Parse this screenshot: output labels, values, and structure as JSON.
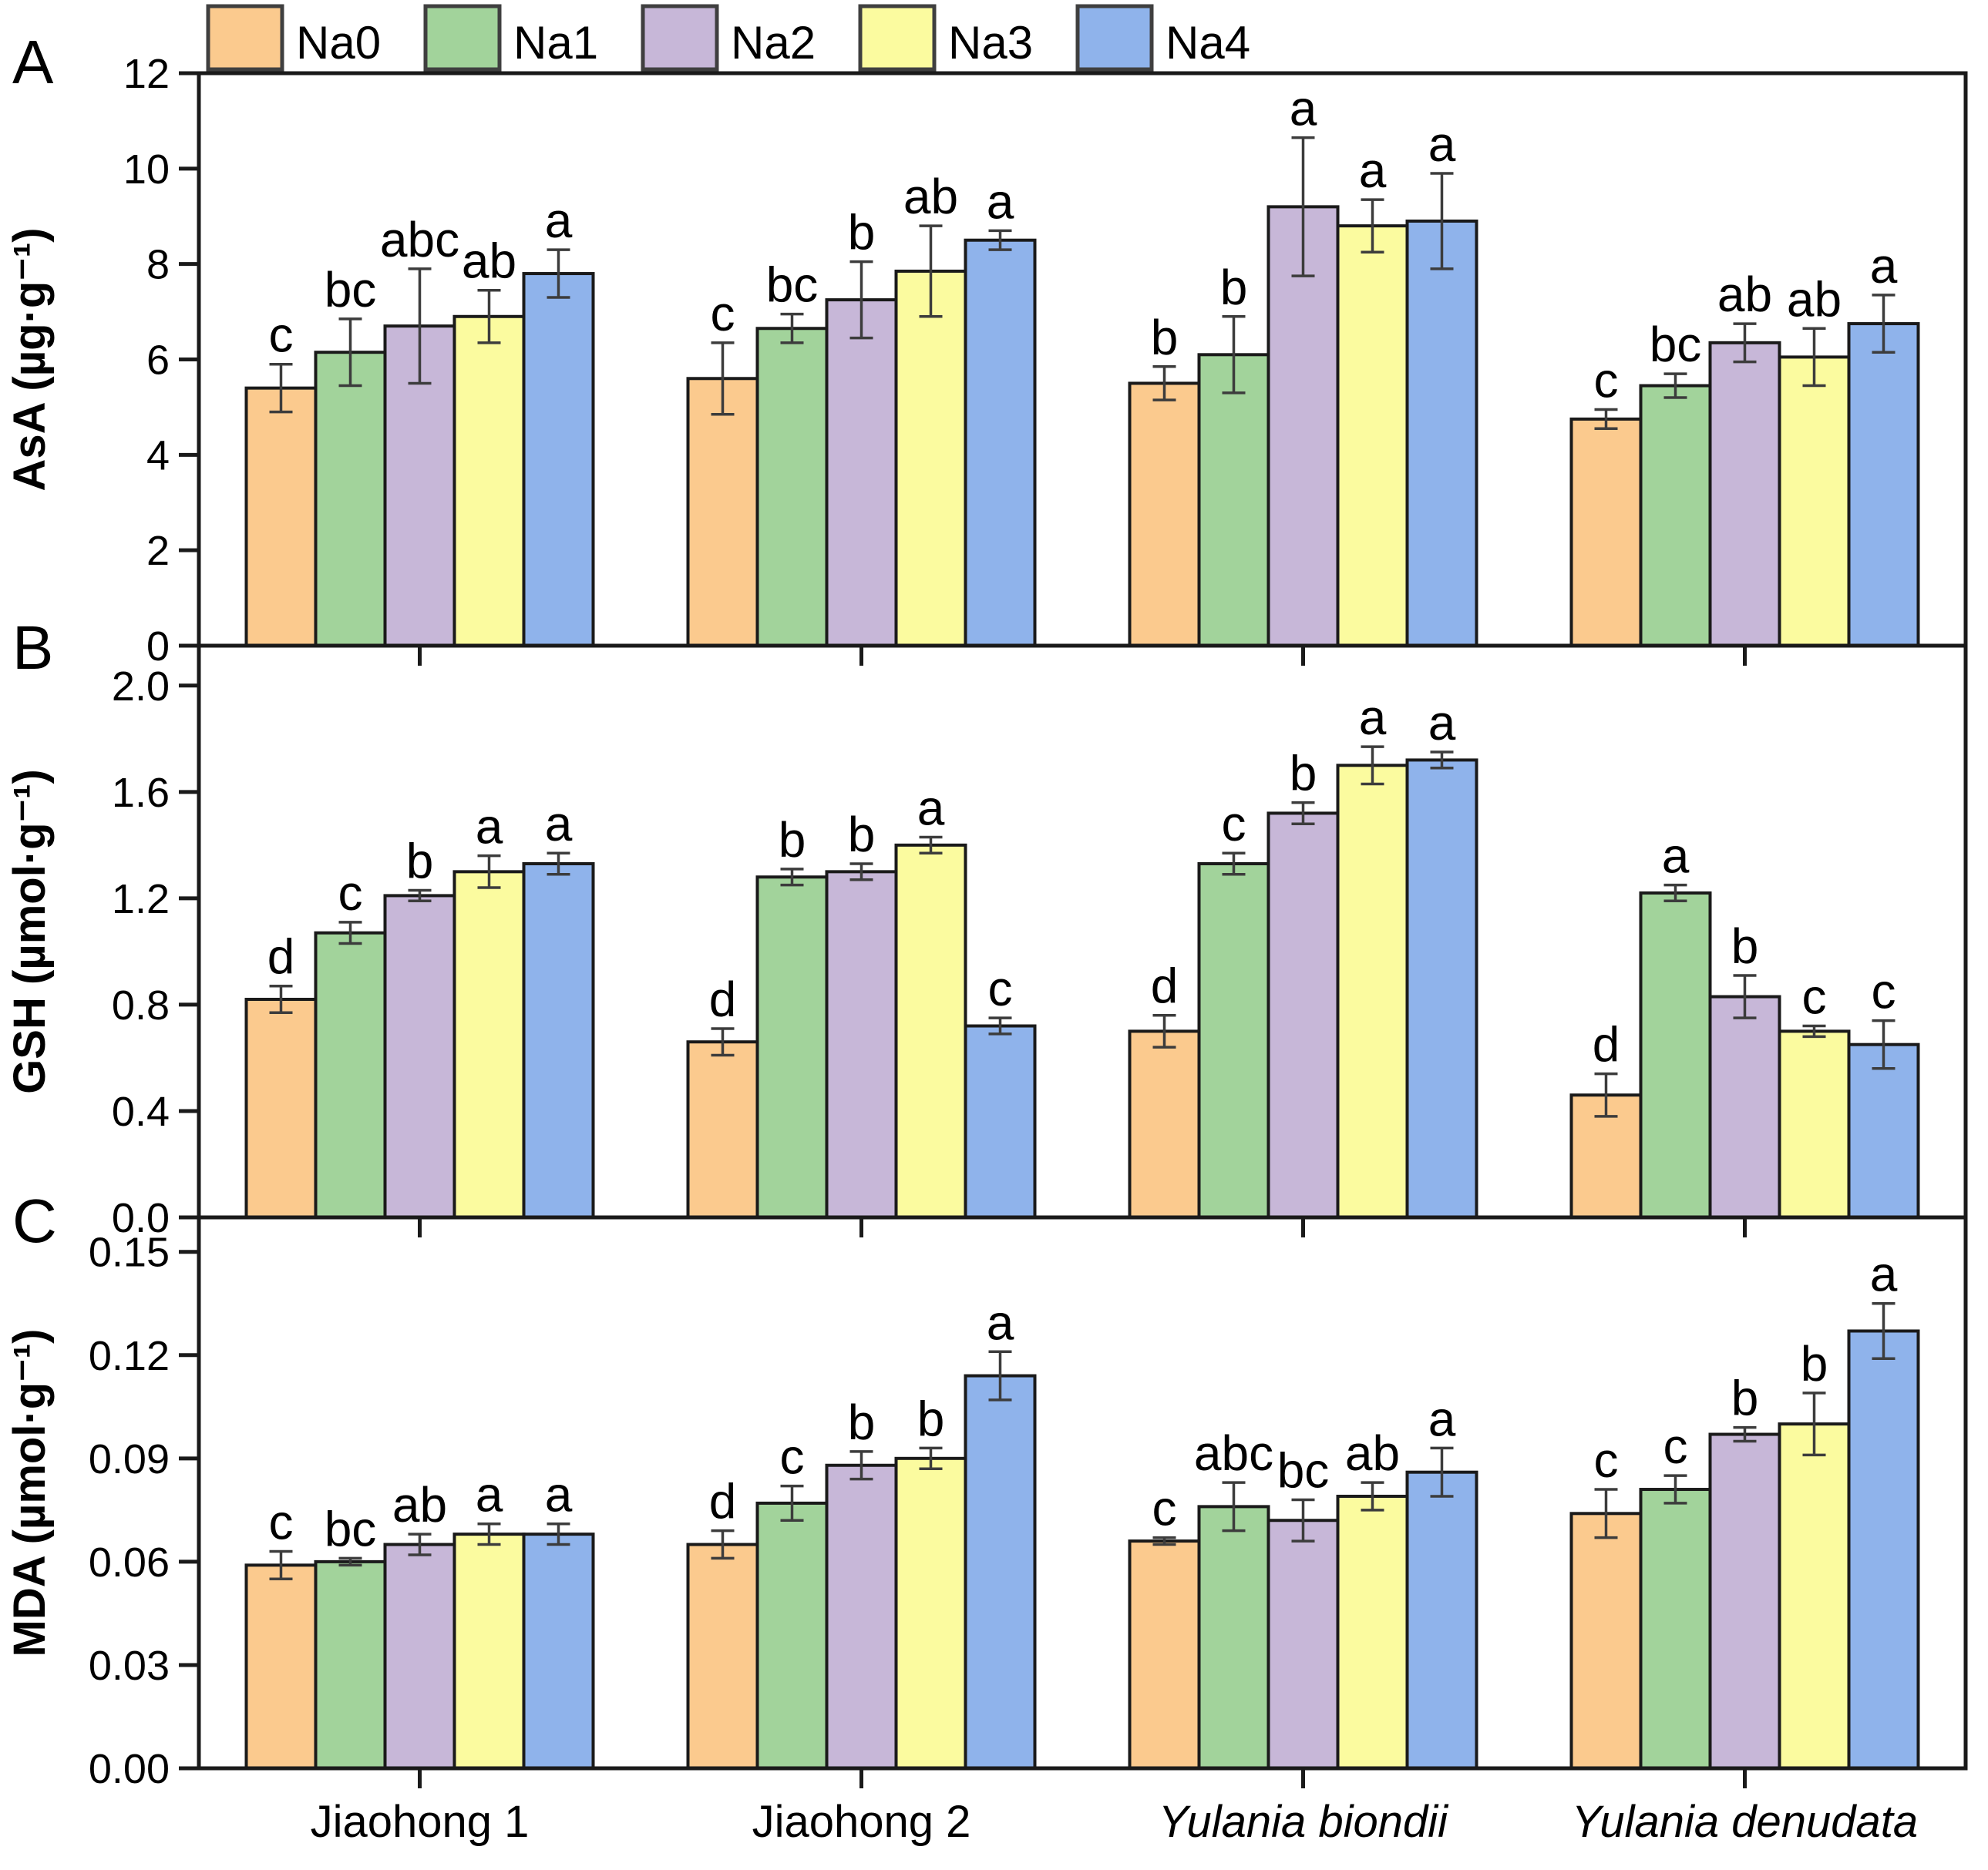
{
  "legend": {
    "swatch_border": "#3f3f3f",
    "entries": [
      {
        "label": "Na0",
        "color": "#FBCA8E"
      },
      {
        "label": "Na1",
        "color": "#A2D39B"
      },
      {
        "label": "Na2",
        "color": "#C7B7D8"
      },
      {
        "label": "Na3",
        "color": "#FBFB9F"
      },
      {
        "label": "Na4",
        "color": "#8FB3EB"
      }
    ]
  },
  "panel_letters": [
    "A",
    "B",
    "C"
  ],
  "x_axis": {
    "categories": [
      {
        "label": "Jiaohong 1",
        "italic": false
      },
      {
        "label": "Jiaohong 2",
        "italic": false
      },
      {
        "label": "Yulania biondii",
        "italic": true
      },
      {
        "label": "Yulania denudata",
        "italic": true
      }
    ]
  },
  "chart_data": [
    {
      "type": "bar",
      "panel": "A",
      "ylabel": "AsA (µg·g⁻¹)",
      "ylim": [
        0,
        12
      ],
      "yticks": [
        0,
        2,
        4,
        6,
        8,
        10,
        12
      ],
      "ytick_labels": [
        "0",
        "2",
        "4",
        "6",
        "8",
        "10",
        "12"
      ],
      "grid": false,
      "categories": [
        "Jiaohong 1",
        "Jiaohong 2",
        "Yulania biondii",
        "Yulania denudata"
      ],
      "series": [
        {
          "name": "Na0",
          "values": [
            5.4,
            5.6,
            5.5,
            4.75
          ],
          "errors": [
            0.5,
            0.75,
            0.35,
            0.2
          ],
          "sig": [
            "c",
            "c",
            "b",
            "c"
          ]
        },
        {
          "name": "Na1",
          "values": [
            6.15,
            6.65,
            6.1,
            5.45
          ],
          "errors": [
            0.7,
            0.3,
            0.8,
            0.25
          ],
          "sig": [
            "bc",
            "bc",
            "b",
            "bc"
          ]
        },
        {
          "name": "Na2",
          "values": [
            6.7,
            7.25,
            9.2,
            6.35
          ],
          "errors": [
            1.2,
            0.8,
            1.45,
            0.4
          ],
          "sig": [
            "abc",
            "b",
            "a",
            "ab"
          ]
        },
        {
          "name": "Na3",
          "values": [
            6.9,
            7.85,
            8.8,
            6.05
          ],
          "errors": [
            0.55,
            0.95,
            0.55,
            0.6
          ],
          "sig": [
            "ab",
            "ab",
            "a",
            "ab"
          ]
        },
        {
          "name": "Na4",
          "values": [
            7.8,
            8.5,
            8.9,
            6.75
          ],
          "errors": [
            0.5,
            0.2,
            1.0,
            0.6
          ],
          "sig": [
            "a",
            "a",
            "a",
            "a"
          ]
        }
      ]
    },
    {
      "type": "bar",
      "panel": "B",
      "ylabel": "GSH (µmol·g⁻¹)",
      "ylim": [
        0,
        2.15
      ],
      "yticks": [
        0.0,
        0.4,
        0.8,
        1.2,
        1.6,
        2.0
      ],
      "ytick_labels": [
        "0.0",
        "0.4",
        "0.8",
        "1.2",
        "1.6",
        "2.0"
      ],
      "grid": false,
      "categories": [
        "Jiaohong 1",
        "Jiaohong 2",
        "Yulania biondii",
        "Yulania denudata"
      ],
      "series": [
        {
          "name": "Na0",
          "values": [
            0.82,
            0.66,
            0.7,
            0.46
          ],
          "errors": [
            0.05,
            0.05,
            0.06,
            0.08
          ],
          "sig": [
            "d",
            "d",
            "d",
            "d"
          ]
        },
        {
          "name": "Na1",
          "values": [
            1.07,
            1.28,
            1.33,
            1.22
          ],
          "errors": [
            0.04,
            0.03,
            0.04,
            0.03
          ],
          "sig": [
            "c",
            "b",
            "c",
            "a"
          ]
        },
        {
          "name": "Na2",
          "values": [
            1.21,
            1.3,
            1.52,
            0.83
          ],
          "errors": [
            0.02,
            0.03,
            0.04,
            0.08
          ],
          "sig": [
            "b",
            "b",
            "b",
            "b"
          ]
        },
        {
          "name": "Na3",
          "values": [
            1.3,
            1.4,
            1.7,
            0.7
          ],
          "errors": [
            0.06,
            0.03,
            0.07,
            0.02
          ],
          "sig": [
            "a",
            "a",
            "a",
            "c"
          ]
        },
        {
          "name": "Na4",
          "values": [
            1.33,
            0.72,
            1.72,
            0.65
          ],
          "errors": [
            0.04,
            0.03,
            0.03,
            0.09
          ],
          "sig": [
            "a",
            "c",
            "a",
            "c"
          ]
        }
      ]
    },
    {
      "type": "bar",
      "panel": "C",
      "ylabel": "MDA (µmol·g⁻¹)",
      "ylim": [
        0,
        0.16
      ],
      "yticks": [
        0.0,
        0.03,
        0.06,
        0.09,
        0.12,
        0.15
      ],
      "ytick_labels": [
        "0.00",
        "0.03",
        "0.06",
        "0.09",
        "0.12",
        "0.15"
      ],
      "grid": false,
      "categories": [
        "Jiaohong 1",
        "Jiaohong 2",
        "Yulania biondii",
        "Yulania denudata"
      ],
      "series": [
        {
          "name": "Na0",
          "values": [
            0.059,
            0.065,
            0.066,
            0.074
          ],
          "errors": [
            0.004,
            0.004,
            0.001,
            0.007
          ],
          "sig": [
            "c",
            "d",
            "c",
            "c"
          ]
        },
        {
          "name": "Na1",
          "values": [
            0.06,
            0.077,
            0.076,
            0.081
          ],
          "errors": [
            0.001,
            0.005,
            0.007,
            0.004
          ],
          "sig": [
            "bc",
            "c",
            "abc",
            "c"
          ]
        },
        {
          "name": "Na2",
          "values": [
            0.065,
            0.088,
            0.072,
            0.097
          ],
          "errors": [
            0.003,
            0.004,
            0.006,
            0.002
          ],
          "sig": [
            "ab",
            "b",
            "bc",
            "b"
          ]
        },
        {
          "name": "Na3",
          "values": [
            0.068,
            0.09,
            0.079,
            0.1
          ],
          "errors": [
            0.003,
            0.003,
            0.004,
            0.009
          ],
          "sig": [
            "a",
            "b",
            "ab",
            "b"
          ]
        },
        {
          "name": "Na4",
          "values": [
            0.068,
            0.114,
            0.086,
            0.127
          ],
          "errors": [
            0.003,
            0.007,
            0.007,
            0.008
          ],
          "sig": [
            "a",
            "a",
            "a",
            "a"
          ]
        }
      ]
    }
  ]
}
